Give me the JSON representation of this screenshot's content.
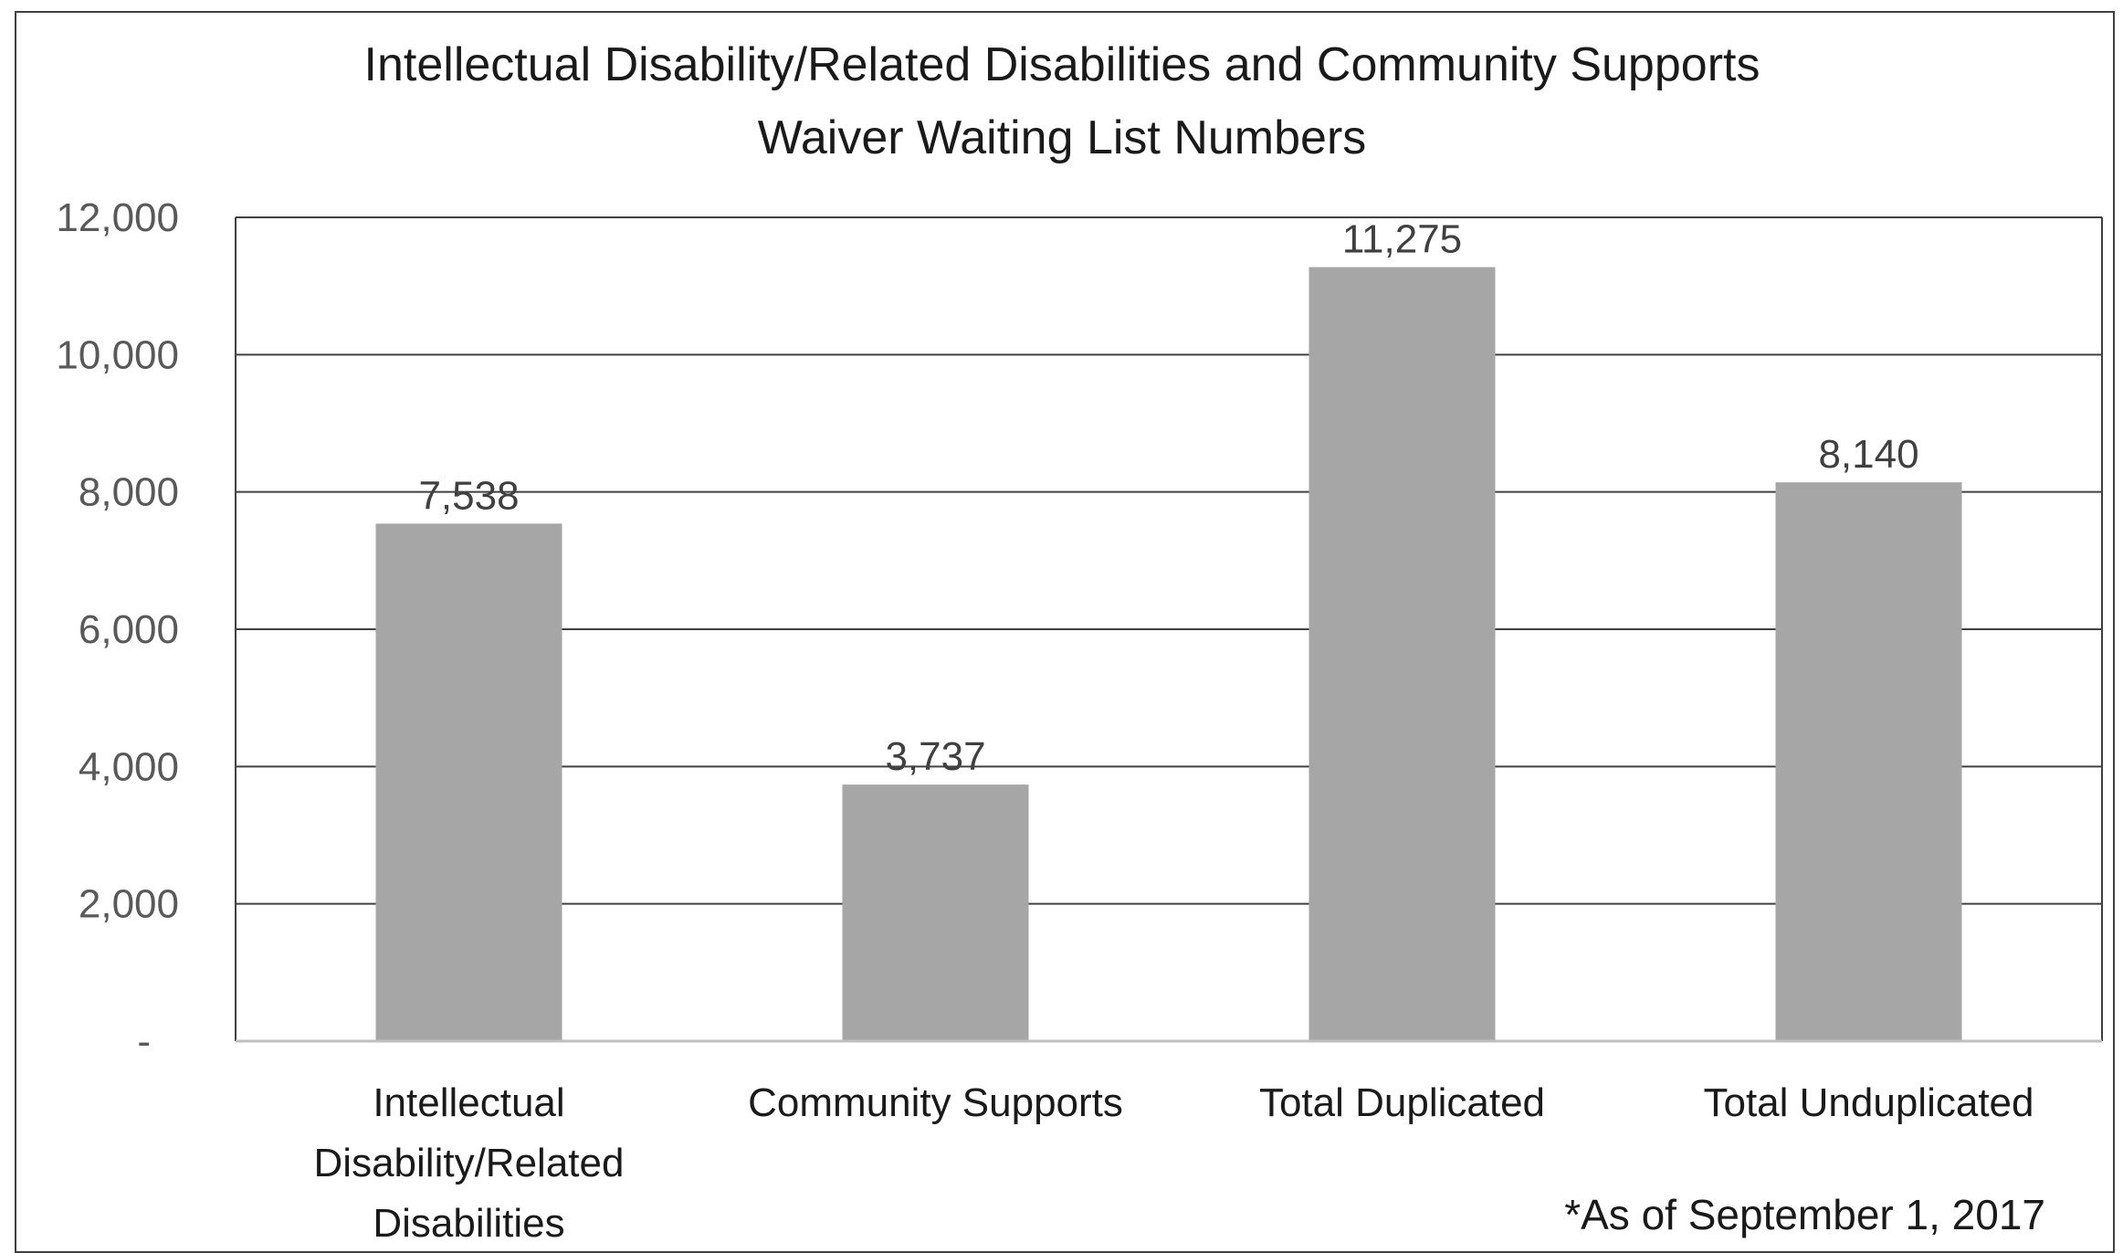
{
  "chart_data": {
    "type": "bar",
    "title": "Intellectual Disability/Related Disabilities and Community Supports Waiver Waiting List Numbers",
    "title_lines": [
      "Intellectual Disability/Related Disabilities and Community Supports",
      "Waiver Waiting List Numbers"
    ],
    "categories": [
      "Intellectual Disability/Related Disabilities",
      "Community Supports",
      "Total Duplicated",
      "Total Unduplicated"
    ],
    "category_lines": [
      [
        "Intellectual",
        "Disability/Related",
        "Disabilities"
      ],
      [
        "Community Supports"
      ],
      [
        "Total Duplicated"
      ],
      [
        "Total Unduplicated"
      ]
    ],
    "values": [
      7538,
      3737,
      11275,
      8140
    ],
    "data_labels": [
      "7,538",
      "3,737",
      "11,275",
      "8,140"
    ],
    "ylim": [
      0,
      12000
    ],
    "yticks": [
      0,
      2000,
      4000,
      6000,
      8000,
      10000,
      12000
    ],
    "ytick_labels": [
      "-",
      "2,000",
      "4,000",
      "6,000",
      "8,000",
      "10,000",
      "12,000"
    ],
    "xlabel": "",
    "ylabel": "",
    "grid": true,
    "legend": "none",
    "bar_color": "#a6a6a6",
    "gridline_color": "#404040",
    "footnote": "*As of September 1, 2017"
  }
}
